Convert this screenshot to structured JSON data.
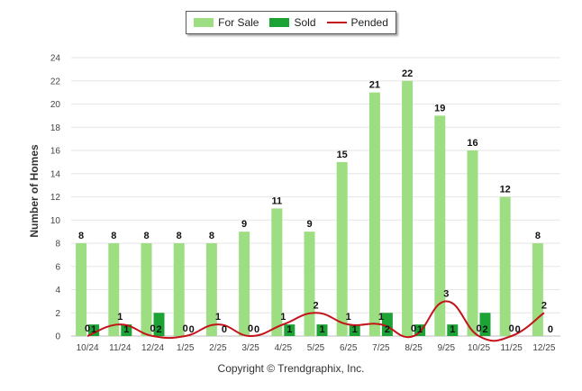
{
  "chart_data": {
    "type": "bar",
    "ylabel": "Number of Homes",
    "xlabel": "",
    "ylim": [
      0,
      24
    ],
    "yticks": [
      0,
      2,
      4,
      6,
      8,
      10,
      12,
      14,
      16,
      18,
      20,
      22,
      24
    ],
    "categories": [
      "10/24",
      "11/24",
      "12/24",
      "1/25",
      "2/25",
      "3/25",
      "4/25",
      "5/25",
      "6/25",
      "7/25",
      "8/25",
      "9/25",
      "10/25",
      "11/25",
      "12/25"
    ],
    "series": [
      {
        "name": "For Sale",
        "type": "bar",
        "color": "#9ede82",
        "values": [
          8,
          8,
          8,
          8,
          8,
          9,
          11,
          9,
          15,
          21,
          22,
          19,
          16,
          12,
          8
        ]
      },
      {
        "name": "Sold",
        "type": "bar",
        "color": "#1da236",
        "values": [
          1,
          1,
          2,
          0,
          0,
          0,
          1,
          1,
          1,
          2,
          1,
          1,
          2,
          0,
          0
        ]
      },
      {
        "name": "Pended",
        "type": "line",
        "color": "#c3141b",
        "values": [
          0,
          1,
          0,
          0,
          1,
          0,
          1,
          2,
          1,
          1,
          0,
          3,
          0,
          0,
          2
        ]
      }
    ],
    "legend": {
      "position": "top-center"
    },
    "grid": true
  },
  "footer": {
    "copyright": "Copyright © Trendgraphix, Inc."
  }
}
